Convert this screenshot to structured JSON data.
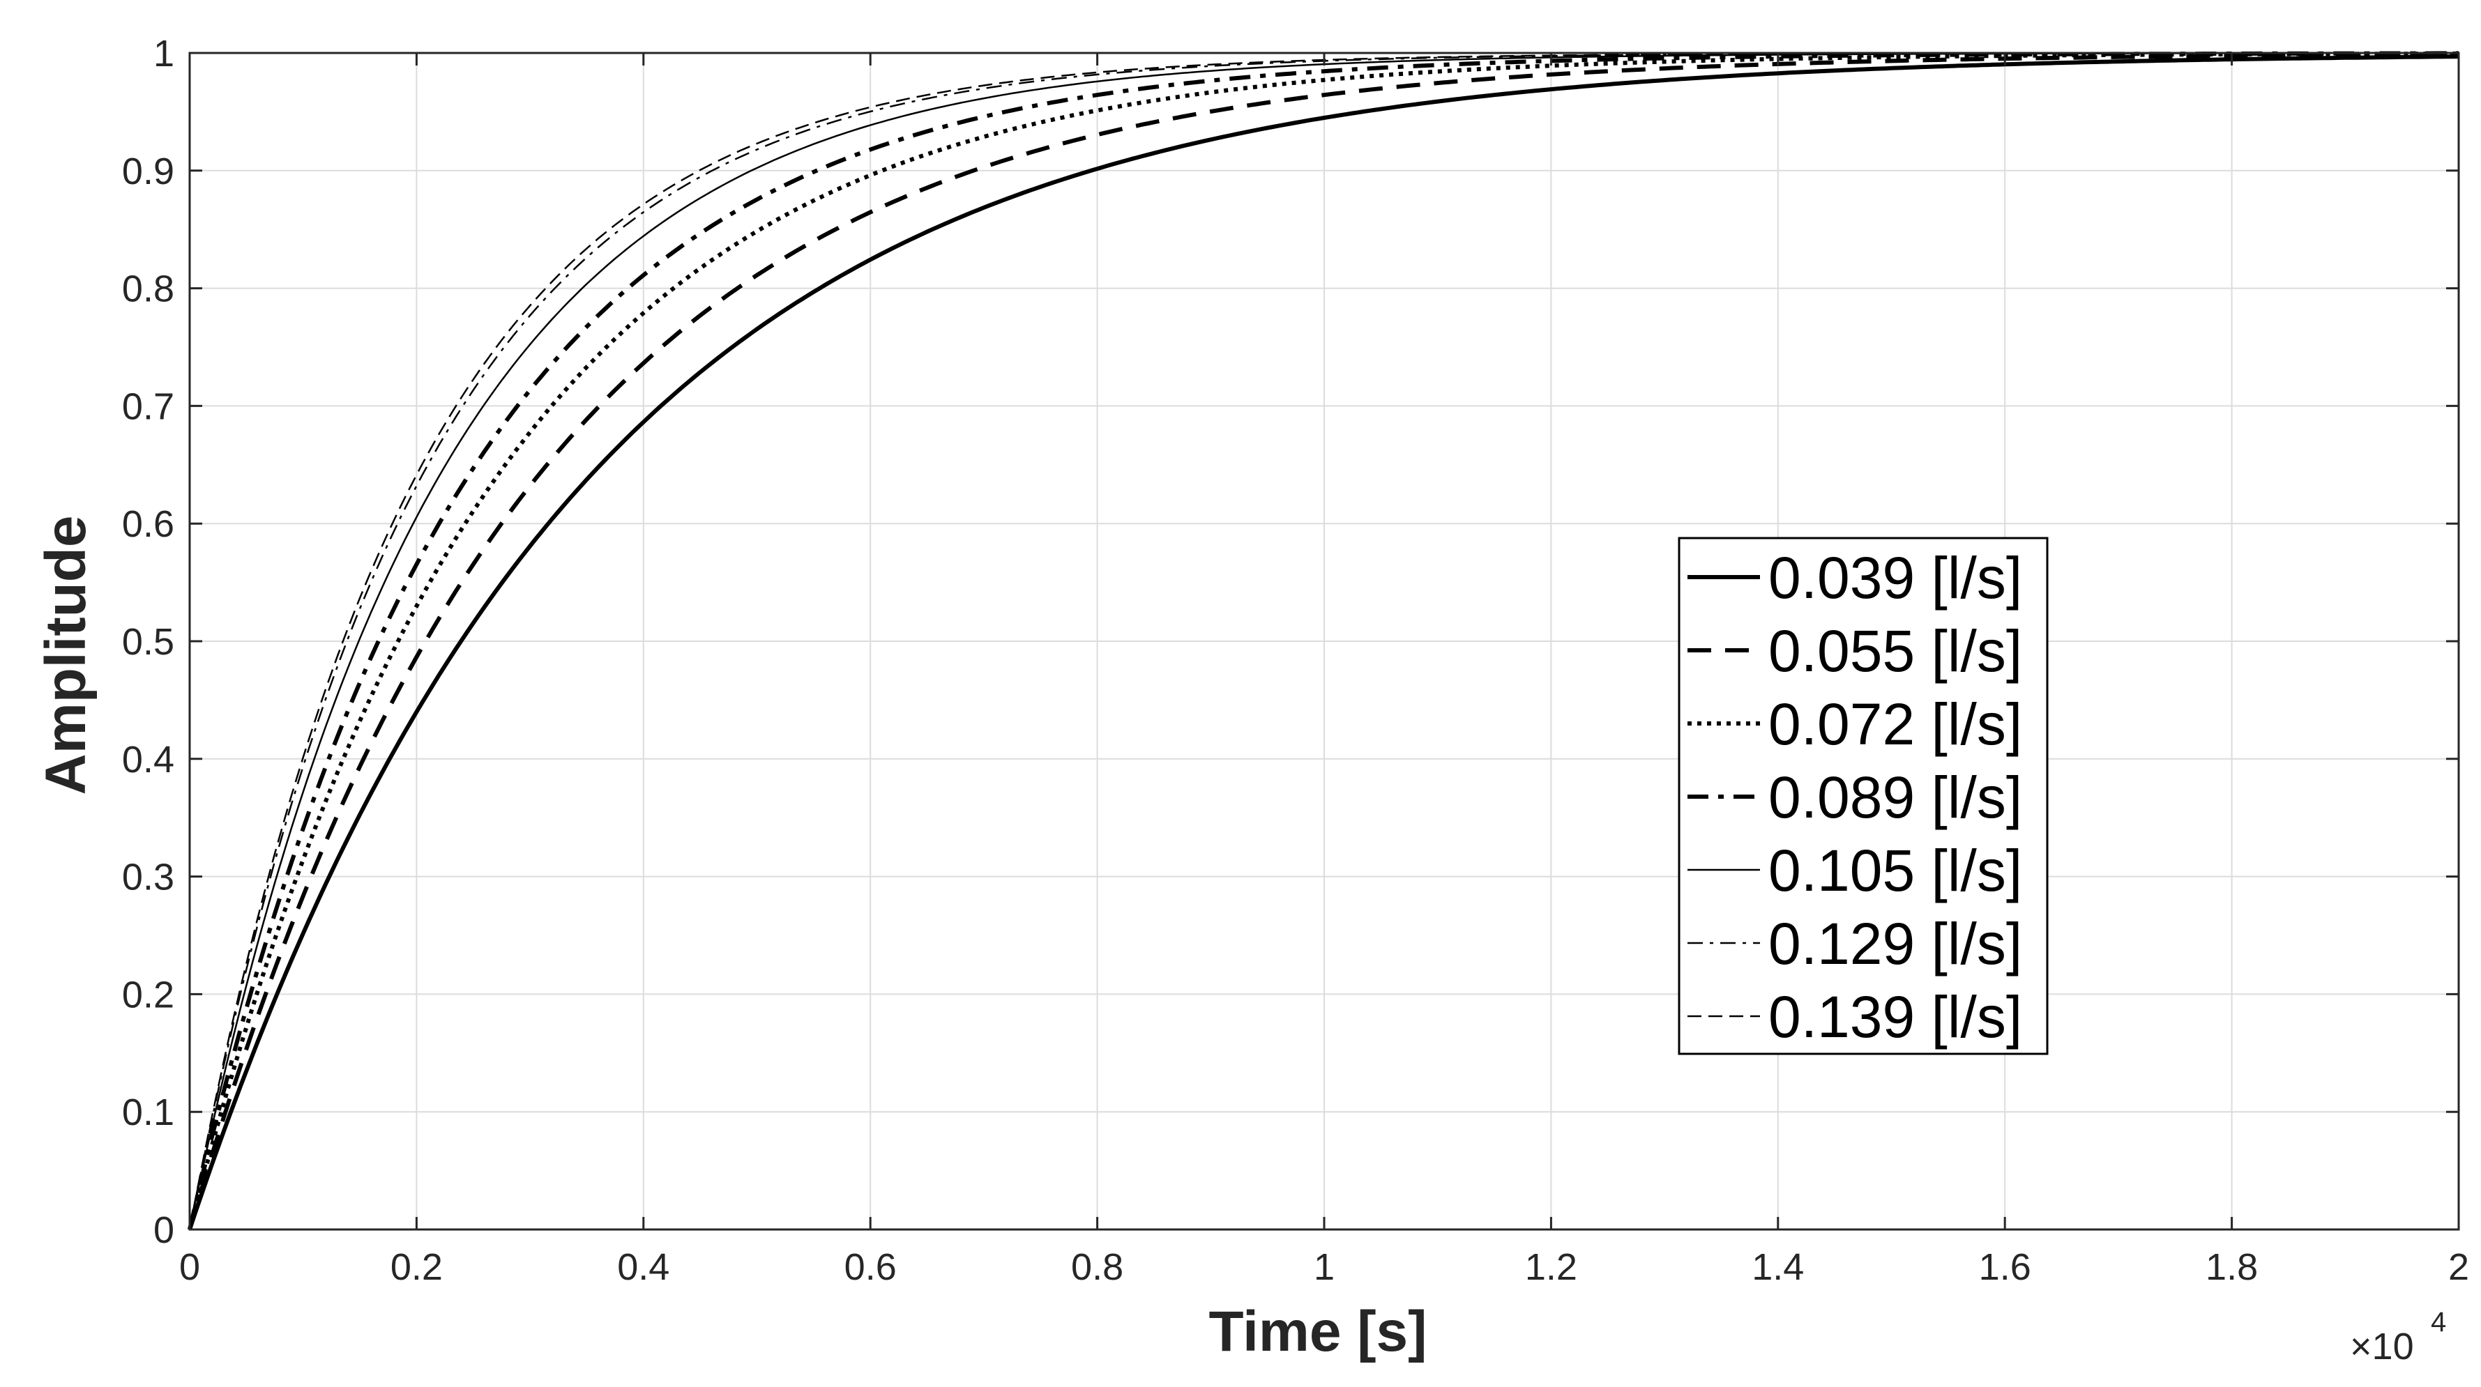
{
  "chart_data": {
    "type": "line",
    "title": "",
    "xlabel": "Time [s]",
    "ylabel": "Amplitude",
    "xlim": [
      0,
      2
    ],
    "ylim": [
      0,
      1
    ],
    "x_multiplier_label": "×10",
    "x_multiplier_exponent": "4",
    "xticks": [
      "0",
      "0.2",
      "0.4",
      "0.6",
      "0.8",
      "1",
      "1.2",
      "1.4",
      "1.6",
      "1.8",
      "2"
    ],
    "yticks": [
      "0",
      "0.1",
      "0.2",
      "0.3",
      "0.4",
      "0.5",
      "0.6",
      "0.7",
      "0.8",
      "0.9",
      "1"
    ],
    "grid": true,
    "legend_position": "center-right",
    "series": [
      {
        "name": "0.039 [l/s]",
        "time_constant": 0.345,
        "style": "solid",
        "weight": "bold"
      },
      {
        "name": "0.055 [l/s]",
        "time_constant": 0.3,
        "style": "dashed",
        "weight": "bold"
      },
      {
        "name": "0.072 [l/s]",
        "time_constant": 0.265,
        "style": "dotted",
        "weight": "bold"
      },
      {
        "name": "0.089 [l/s]",
        "time_constant": 0.24,
        "style": "dashdot",
        "weight": "bold"
      },
      {
        "name": "0.105 [l/s]",
        "time_constant": 0.215,
        "style": "solid",
        "weight": "thin"
      },
      {
        "name": "0.129 [l/s]",
        "time_constant": 0.2,
        "style": "dashdot",
        "weight": "thin"
      },
      {
        "name": "0.139 [l/s]",
        "time_constant": 0.195,
        "style": "dashed",
        "weight": "thin"
      }
    ],
    "colors": {
      "line": "#000000",
      "grid": "#dcdcdc",
      "axes": "#262626",
      "background": "#ffffff"
    }
  }
}
